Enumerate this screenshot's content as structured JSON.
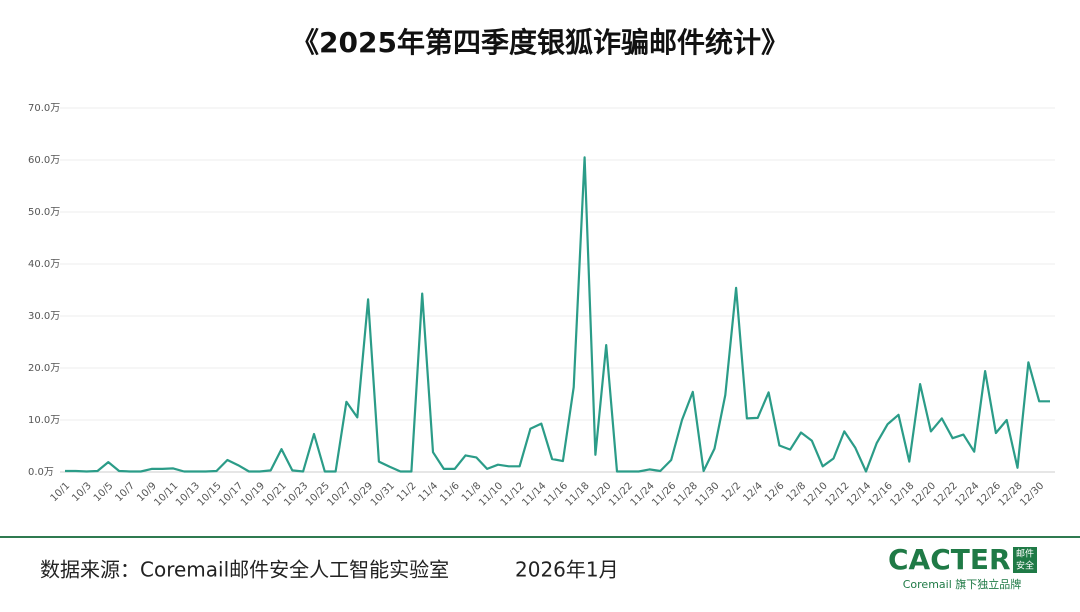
{
  "chart_data": {
    "type": "line",
    "title": "《2025年第四季度银狐诈骗邮件统计》",
    "categories": [
      "10/1",
      null,
      "10/3",
      null,
      "10/5",
      null,
      "10/7",
      null,
      "10/9",
      null,
      "10/11",
      null,
      "10/13",
      null,
      "10/15",
      null,
      "10/17",
      null,
      "10/19",
      null,
      "10/21",
      null,
      "10/23",
      null,
      "10/25",
      null,
      "10/27",
      null,
      "10/29",
      null,
      "10/31",
      null,
      "11/2",
      null,
      "11/4",
      null,
      "11/6",
      null,
      "11/8",
      null,
      "11/10",
      null,
      "11/12",
      null,
      "11/14",
      null,
      "11/16",
      null,
      "11/18",
      null,
      "11/20",
      null,
      "11/22",
      null,
      "11/24",
      null,
      "11/26",
      null,
      "11/28",
      null,
      "11/30",
      null,
      "12/2",
      null,
      "12/4",
      null,
      "12/6",
      null,
      "12/8",
      null,
      "12/10",
      null,
      "12/12",
      null,
      "12/14",
      null,
      "12/16",
      null,
      "12/18",
      null,
      "12/20",
      null,
      "12/22",
      null,
      "12/24",
      null,
      "12/26",
      null,
      "12/28",
      null,
      "12/30",
      null
    ],
    "values": [
      0.2,
      0.2,
      0.1,
      0.2,
      1.9,
      0.2,
      0.1,
      0.1,
      0.6,
      0.6,
      0.7,
      0.1,
      0.1,
      0.1,
      0.2,
      2.3,
      1.3,
      0.1,
      0.1,
      0.3,
      4.4,
      0.3,
      0.1,
      7.3,
      0.1,
      0.1,
      13.5,
      10.5,
      33.2,
      2.0,
      1.0,
      0.1,
      0.1,
      34.3,
      3.8,
      0.6,
      0.6,
      3.2,
      2.8,
      0.6,
      1.4,
      1.1,
      1.1,
      8.3,
      9.3,
      2.5,
      2.1,
      16.3,
      60.5,
      3.3,
      24.4,
      0.1,
      0.1,
      0.1,
      0.5,
      0.2,
      2.3,
      10.0,
      15.4,
      0.2,
      4.5,
      14.8,
      35.4,
      10.3,
      10.4,
      15.3,
      5.1,
      4.3,
      7.6,
      6.0,
      1.1,
      2.6,
      7.8,
      4.7,
      0.1,
      5.6,
      9.2,
      11.0,
      2.0,
      16.9,
      7.8,
      10.3,
      6.5,
      7.2,
      3.9,
      19.4,
      7.5,
      10.0,
      0.8,
      21.1,
      13.6,
      13.6
    ],
    "color": "#2b9c88",
    "ylim": [
      0,
      70
    ],
    "yticks": [
      {
        "value": 0,
        "label": "0.0万"
      },
      {
        "value": 10,
        "label": "10.0万"
      },
      {
        "value": 20,
        "label": "20.0万"
      },
      {
        "value": 30,
        "label": "30.0万"
      },
      {
        "value": 40,
        "label": "40.0万"
      },
      {
        "value": 50,
        "label": "50.0万"
      },
      {
        "value": 60,
        "label": "60.0万"
      },
      {
        "value": 70,
        "label": "70.0万"
      }
    ],
    "grid": true
  },
  "footer": {
    "source": "数据来源：Coremail邮件安全人工智能实验室",
    "date": "2026年1月"
  },
  "logo": {
    "name": "CACTER",
    "badge": [
      "邮件",
      "安全"
    ],
    "slogan": "Coremail 旗下独立品牌"
  }
}
